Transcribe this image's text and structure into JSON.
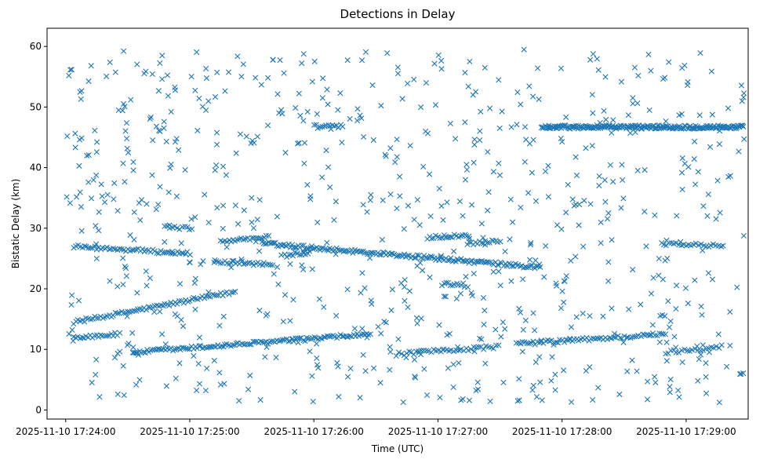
{
  "chart_data": {
    "type": "scatter",
    "title": "Detections in Delay",
    "xlabel": "Time (UTC)",
    "ylabel": "Bistatic Delay (km)",
    "marker": "x",
    "color": "#1f77b4",
    "x_unit": "seconds since 2025-11-10 17:24:00 UTC",
    "xlim": [
      -9,
      330
    ],
    "ylim": [
      -1.5,
      63
    ],
    "x_ticks": [
      {
        "value": 0,
        "label": "2025-11-10 17:24:00"
      },
      {
        "value": 60,
        "label": "2025-11-10 17:25:00"
      },
      {
        "value": 120,
        "label": "2025-11-10 17:26:00"
      },
      {
        "value": 180,
        "label": "2025-11-10 17:27:00"
      },
      {
        "value": 240,
        "label": "2025-11-10 17:28:00"
      },
      {
        "value": 300,
        "label": "2025-11-10 17:29:00"
      }
    ],
    "y_ticks": [
      {
        "value": 0,
        "label": "0"
      },
      {
        "value": 10,
        "label": "10"
      },
      {
        "value": 20,
        "label": "20"
      },
      {
        "value": 30,
        "label": "30"
      },
      {
        "value": 40,
        "label": "40"
      },
      {
        "value": 50,
        "label": "50"
      },
      {
        "value": 60,
        "label": "60"
      }
    ],
    "tracks": [
      {
        "x_start": 4,
        "x_end": 82,
        "y_start": 14.5,
        "y_end": 19.5,
        "step": 1.0
      },
      {
        "x_start": 4,
        "x_end": 26,
        "y_start": 12.0,
        "y_end": 12.5,
        "step": 1.0
      },
      {
        "x_start": 33,
        "x_end": 148,
        "y_start": 9.5,
        "y_end": 12.5,
        "step": 0.9
      },
      {
        "x_start": 160,
        "x_end": 210,
        "y_start": 9.2,
        "y_end": 10.5,
        "step": 1.2
      },
      {
        "x_start": 218,
        "x_end": 290,
        "y_start": 10.9,
        "y_end": 12.5,
        "step": 1.0
      },
      {
        "x_start": 290,
        "x_end": 318,
        "y_start": 9.5,
        "y_end": 10.5,
        "step": 1.3
      },
      {
        "x_start": 4,
        "x_end": 60,
        "y_start": 27.0,
        "y_end": 25.8,
        "step": 1.0
      },
      {
        "x_start": 72,
        "x_end": 100,
        "y_start": 24.5,
        "y_end": 24.0,
        "step": 1.0
      },
      {
        "x_start": 95,
        "x_end": 230,
        "y_start": 27.5,
        "y_end": 23.5,
        "step": 0.8
      },
      {
        "x_start": 75,
        "x_end": 98,
        "y_start": 27.8,
        "y_end": 28.5,
        "step": 1.0
      },
      {
        "x_start": 106,
        "x_end": 118,
        "y_start": 25.5,
        "y_end": 26.0,
        "step": 1.0
      },
      {
        "x_start": 175,
        "x_end": 195,
        "y_start": 28.5,
        "y_end": 28.8,
        "step": 1.0
      },
      {
        "x_start": 195,
        "x_end": 210,
        "y_start": 27.5,
        "y_end": 28.0,
        "step": 1.0
      },
      {
        "x_start": 288,
        "x_end": 318,
        "y_start": 27.5,
        "y_end": 27.0,
        "step": 1.2
      },
      {
        "x_start": 182,
        "x_end": 193,
        "y_start": 20.8,
        "y_end": 20.6,
        "step": 1.0
      },
      {
        "x_start": 230,
        "x_end": 328,
        "y_start": 46.7,
        "y_end": 46.7,
        "step": 0.45
      },
      {
        "x_start": 120,
        "x_end": 134,
        "y_start": 46.8,
        "y_end": 46.8,
        "step": 1.0
      },
      {
        "x_start": 48,
        "x_end": 62,
        "y_start": 30.2,
        "y_end": 29.9,
        "step": 1.2
      }
    ],
    "noise": {
      "count": 760,
      "seed": 12345
    }
  }
}
